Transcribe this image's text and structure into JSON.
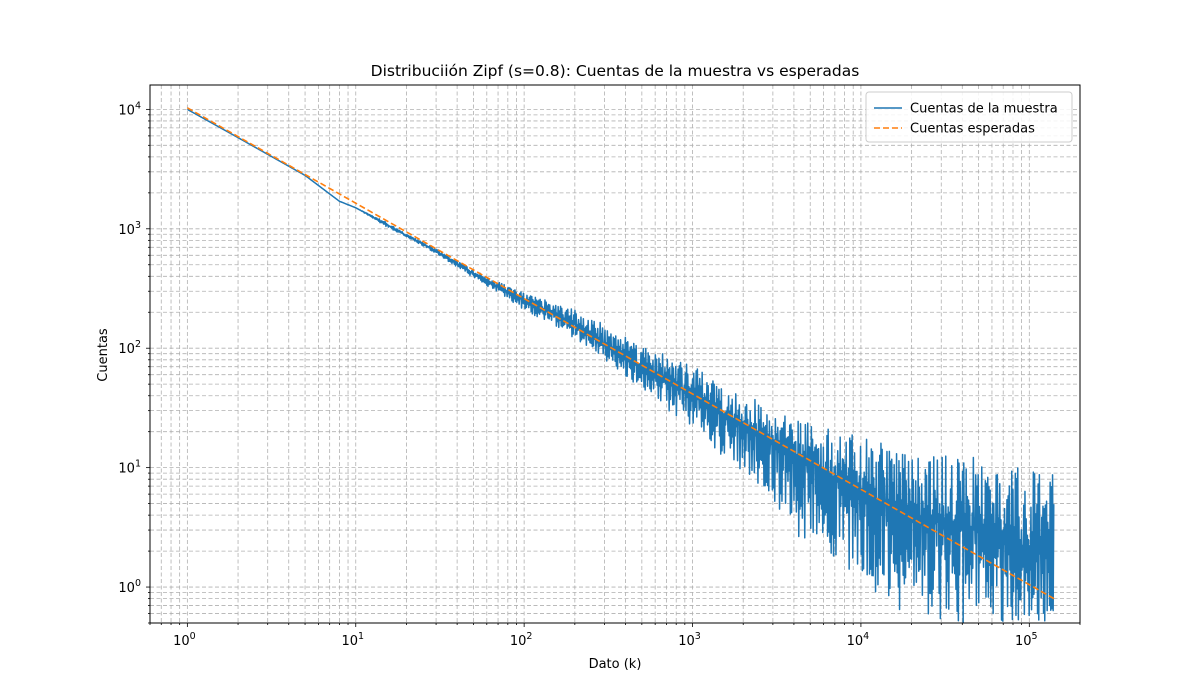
{
  "chart_data": {
    "type": "line",
    "title": "Distribuciión Zipf (s=0.8): Cuentas de la muestra vs esperadas",
    "xlabel": "Dato (k)",
    "ylabel": "Cuentas",
    "xscale": "log",
    "yscale": "log",
    "xlim": [
      0.6,
      200000
    ],
    "ylim": [
      0.5,
      16000
    ],
    "x_ticks": [
      {
        "base": "10",
        "exp": "0",
        "value": 1
      },
      {
        "base": "10",
        "exp": "1",
        "value": 10
      },
      {
        "base": "10",
        "exp": "2",
        "value": 100
      },
      {
        "base": "10",
        "exp": "3",
        "value": 1000
      },
      {
        "base": "10",
        "exp": "4",
        "value": 10000
      },
      {
        "base": "10",
        "exp": "5",
        "value": 100000
      }
    ],
    "y_ticks": [
      {
        "base": "10",
        "exp": "0",
        "value": 1
      },
      {
        "base": "10",
        "exp": "1",
        "value": 10
      },
      {
        "base": "10",
        "exp": "2",
        "value": 100
      },
      {
        "base": "10",
        "exp": "3",
        "value": 1000
      },
      {
        "base": "10",
        "exp": "4",
        "value": 10000
      }
    ],
    "grid": true,
    "grid_which": "both",
    "legend_position": "top-right",
    "series": [
      {
        "name": "Cuentas de la muestra",
        "color": "#1f77b4",
        "style": "solid",
        "x": [
          1,
          2,
          3,
          5,
          8,
          10,
          15,
          20,
          30,
          50,
          100,
          200,
          300,
          500,
          1000,
          2000,
          3000,
          5000,
          10000,
          20000,
          50000,
          100000,
          140000
        ],
        "values": [
          10000,
          5800,
          4200,
          2800,
          1700,
          1500,
          1100,
          880,
          650,
          420,
          250,
          160,
          110,
          70,
          40,
          22,
          17,
          11,
          6,
          4,
          3,
          2,
          2
        ],
        "band_max": [
          10000,
          5800,
          4200,
          2800,
          1700,
          1500,
          1150,
          900,
          680,
          450,
          290,
          210,
          160,
          110,
          70,
          45,
          28,
          25,
          18,
          14,
          12,
          10,
          9
        ],
        "band_min": [
          10000,
          5800,
          4200,
          2800,
          1700,
          1500,
          1050,
          860,
          620,
          390,
          210,
          120,
          80,
          45,
          20,
          9,
          5,
          2,
          1,
          0.5,
          0.5,
          0.5,
          0.5
        ]
      },
      {
        "name": "Cuentas esperadas",
        "color": "#ff7f0e",
        "style": "dashed",
        "x": [
          1,
          140000
        ],
        "values": [
          10300,
          0.8
        ]
      }
    ]
  }
}
